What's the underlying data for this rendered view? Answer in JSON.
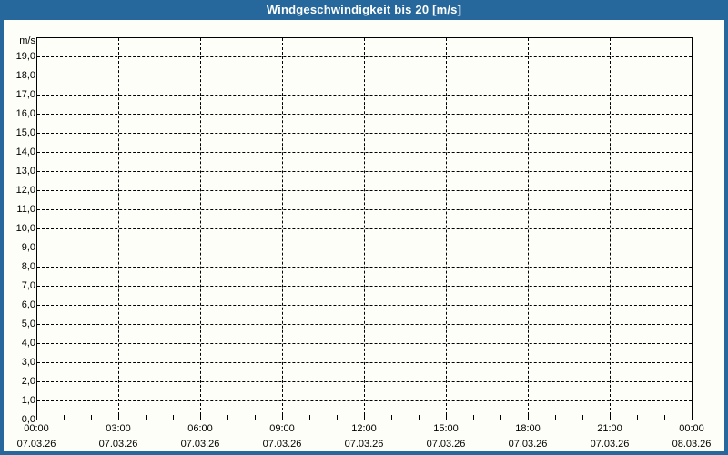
{
  "window": {
    "title": "Windgeschwindigkeit bis 20 [m/s]"
  },
  "colors": {
    "titlebar_bg": "#26689B",
    "titlebar_text": "#FFFFFF",
    "frame_border": "#26689B",
    "page_bg": "#FDFEF8",
    "axis_and_text": "#000000"
  },
  "chart_data": {
    "type": "line",
    "title": "Windgeschwindigkeit bis 20 [m/s]",
    "xlabel": "",
    "ylabel": "m/s",
    "ylim": [
      0,
      20
    ],
    "ytick_interval": 1.0,
    "ytick_labels": [
      "0,0",
      "1,0",
      "2,0",
      "3,0",
      "4,0",
      "5,0",
      "6,0",
      "7,0",
      "8,0",
      "9,0",
      "10,0",
      "11,0",
      "12,0",
      "13,0",
      "14,0",
      "15,0",
      "16,0",
      "17,0",
      "18,0",
      "19,0"
    ],
    "xticks": [
      {
        "time": "00:00",
        "date": "07.03.26"
      },
      {
        "time": "03:00",
        "date": "07.03.26"
      },
      {
        "time": "06:00",
        "date": "07.03.26"
      },
      {
        "time": "09:00",
        "date": "07.03.26"
      },
      {
        "time": "12:00",
        "date": "07.03.26"
      },
      {
        "time": "15:00",
        "date": "07.03.26"
      },
      {
        "time": "18:00",
        "date": "07.03.26"
      },
      {
        "time": "21:00",
        "date": "07.03.26"
      },
      {
        "time": "00:00",
        "date": "08.03.26"
      }
    ],
    "x_major_tick_hours": 3,
    "x_minor_tick_hours": 1,
    "x_total_hours": 24,
    "grid": true,
    "legend_position": "none",
    "series": []
  }
}
